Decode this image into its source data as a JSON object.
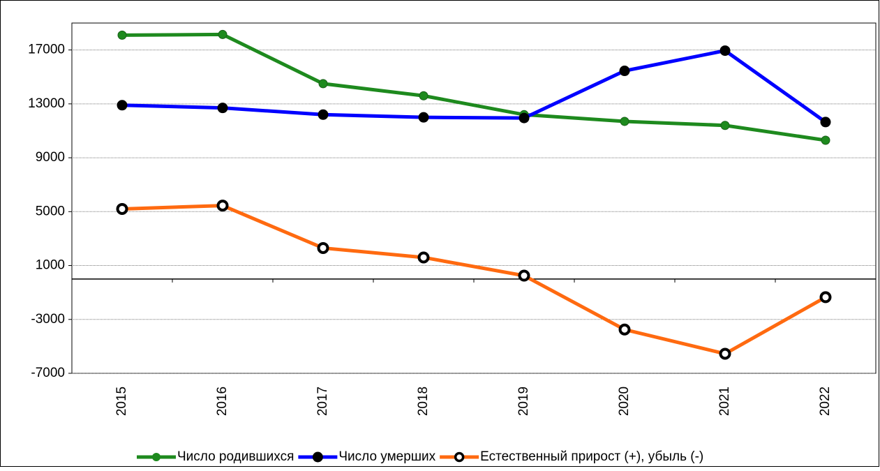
{
  "chart_data": {
    "type": "line",
    "categories": [
      "2015",
      "2016",
      "2017",
      "2018",
      "2019",
      "2020",
      "2021",
      "2022"
    ],
    "series": [
      {
        "name": "Число родившихся",
        "color": "#1e8a1e",
        "values": [
          18100,
          18150,
          14500,
          13600,
          12200,
          11700,
          11400,
          10300
        ]
      },
      {
        "name": "Число умерших",
        "color": "#0000ff",
        "values": [
          12900,
          12700,
          12200,
          12000,
          11950,
          15450,
          16950,
          11650
        ]
      },
      {
        "name": "Естественный прирост (+), убыль (-)",
        "color": "#ff6a10",
        "values": [
          5200,
          5450,
          2300,
          1600,
          250,
          -3750,
          -5550,
          -1350
        ]
      }
    ],
    "ylim": [
      -7000,
      19000
    ],
    "yticks": [
      -7000,
      -3000,
      1000,
      5000,
      9000,
      13000,
      17000
    ],
    "grid": true,
    "legend": "bottom"
  }
}
